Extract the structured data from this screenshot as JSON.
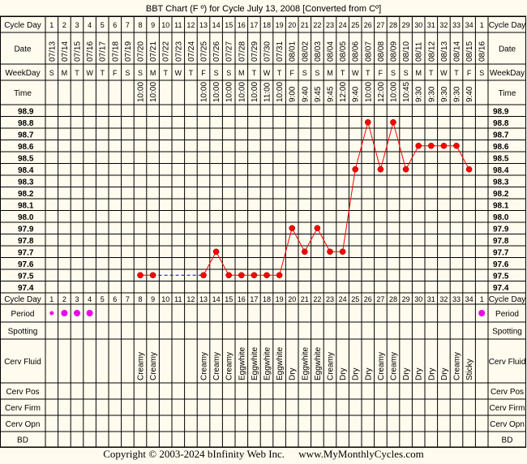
{
  "title": "BBT Chart (F º) for Cycle July 13, 2008  [Converted from Cº]",
  "row_labels": {
    "cycle_day": "Cycle Day",
    "date": "Date",
    "weekday": "WeekDay",
    "time": "Time",
    "period": "Period",
    "spotting": "Spotting",
    "cerv_fluid": "Cerv Fluid",
    "cerv_pos": "Cerv Pos",
    "cerv_firm": "Cerv Firm",
    "cerv_opn": "Cerv Opn",
    "bd": "BD"
  },
  "colors": {
    "background": "#fffbee",
    "line": "#ff0000",
    "point": "#ff0000",
    "gap_line": "#0000ff",
    "period_dot": "#ee00ee"
  },
  "copyright": "Copyright © 2003-2024 bInfinity Web Inc.",
  "website": "www.MyMonthlyCycles.com",
  "chart_data": {
    "type": "line",
    "title": "BBT Chart (F º) for Cycle July 13, 2008  [Converted from Cº]",
    "y_ticks": [
      "98.9",
      "98.8",
      "98.7",
      "98.6",
      "98.5",
      "98.4",
      "98.3",
      "98.2",
      "98.1",
      "98.0",
      "97.9",
      "97.8",
      "97.7",
      "97.6",
      "97.5",
      "97.4"
    ],
    "ylim": [
      97.4,
      98.9
    ],
    "grid": true,
    "x": [
      "1",
      "2",
      "3",
      "4",
      "5",
      "6",
      "7",
      "8",
      "9",
      "10",
      "11",
      "12",
      "13",
      "14",
      "15",
      "16",
      "17",
      "18",
      "19",
      "20",
      "21",
      "22",
      "23",
      "24",
      "25",
      "26",
      "27",
      "28",
      "29",
      "30",
      "31",
      "32",
      "33",
      "34",
      "1"
    ],
    "dates": [
      "07/13",
      "07/14",
      "07/15",
      "07/16",
      "07/17",
      "07/18",
      "07/19",
      "07/20",
      "07/21",
      "07/22",
      "07/23",
      "07/24",
      "07/25",
      "07/26",
      "07/27",
      "07/28",
      "07/29",
      "07/30",
      "07/31",
      "08/01",
      "08/02",
      "08/03",
      "08/04",
      "08/05",
      "08/06",
      "08/07",
      "08/08",
      "08/09",
      "08/10",
      "08/11",
      "08/12",
      "08/13",
      "08/14",
      "08/15",
      "08/16"
    ],
    "weekdays": [
      "S",
      "M",
      "T",
      "W",
      "T",
      "F",
      "S",
      "S",
      "M",
      "T",
      "W",
      "T",
      "F",
      "S",
      "S",
      "M",
      "T",
      "W",
      "T",
      "F",
      "S",
      "S",
      "M",
      "T",
      "W",
      "T",
      "F",
      "S",
      "S",
      "M",
      "T",
      "W",
      "T",
      "F",
      "S"
    ],
    "times": [
      "",
      "",
      "",
      "",
      "",
      "",
      "",
      "10:00",
      "10:00",
      "",
      "",
      "",
      "10:00",
      "10:00",
      "10:00",
      "10:00",
      "10:00",
      "11:00",
      "10:00",
      "9:00",
      "9:40",
      "9:45",
      "9:45",
      "12:00",
      "9:40",
      "10:00",
      "12:00",
      "10:00",
      "10:45",
      "9:30",
      "9:30",
      "9:30",
      "9:30",
      "9:40",
      ""
    ],
    "temps": [
      null,
      null,
      null,
      null,
      null,
      null,
      null,
      97.5,
      97.5,
      null,
      null,
      null,
      97.5,
      97.7,
      97.5,
      97.5,
      97.5,
      97.5,
      97.5,
      97.9,
      97.7,
      97.9,
      97.7,
      97.7,
      98.4,
      98.8,
      98.4,
      98.8,
      98.4,
      98.6,
      98.6,
      98.6,
      98.6,
      98.4,
      null
    ],
    "period": [
      1,
      1,
      1,
      1,
      0,
      0,
      0,
      0,
      0,
      0,
      0,
      0,
      0,
      0,
      0,
      0,
      0,
      0,
      0,
      0,
      0,
      0,
      0,
      0,
      0,
      0,
      0,
      0,
      0,
      0,
      0,
      0,
      0,
      0,
      1
    ],
    "cerv_fluid": [
      "",
      "",
      "",
      "",
      "",
      "",
      "",
      "Creamy",
      "Creamy",
      "",
      "",
      "",
      "Creamy",
      "Creamy",
      "Creamy",
      "Eggwhite",
      "Eggwhite",
      "Eggwhite",
      "Eggwhite",
      "Dry",
      "Eggwhite",
      "Eggwhite",
      "Creamy",
      "Dry",
      "Dry",
      "Dry",
      "Creamy",
      "Creamy",
      "Dry",
      "Dry",
      "Dry",
      "Dry",
      "Creamy",
      "Sticky",
      ""
    ]
  }
}
